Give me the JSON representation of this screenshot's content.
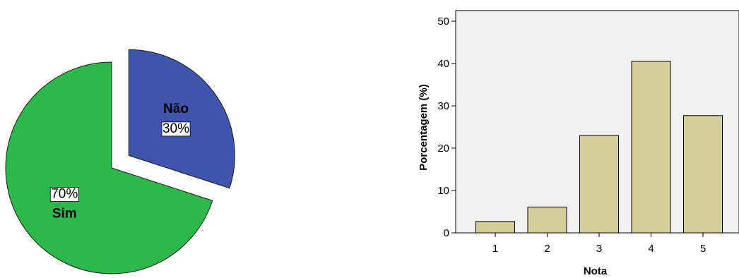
{
  "chart_data": [
    {
      "type": "pie",
      "slices": [
        {
          "label": "Sim",
          "percent_label": "70%",
          "value": 70,
          "color": "#2db84b",
          "exploded": false
        },
        {
          "label": "Não",
          "percent_label": "30%",
          "value": 30,
          "color": "#3f55ad",
          "exploded": true
        }
      ]
    },
    {
      "type": "bar",
      "categories": [
        "1",
        "2",
        "3",
        "4",
        "5"
      ],
      "values": [
        2.7,
        6.1,
        23.0,
        40.5,
        27.7
      ],
      "xlabel": "Nota",
      "ylabel": "Porcentagem (%)",
      "ylim": [
        0,
        50
      ],
      "yticks": [
        "0",
        "10",
        "20",
        "30",
        "40",
        "50"
      ],
      "bar_color": "#d4cf9a",
      "plot_background": "#f0f0f0"
    }
  ]
}
